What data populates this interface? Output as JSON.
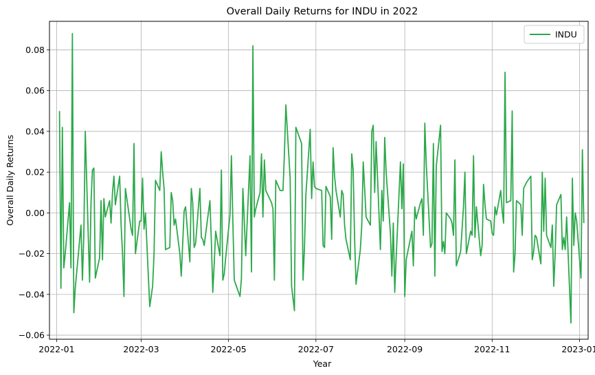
{
  "chart_data": {
    "type": "line",
    "title": "Overall Daily Returns for INDU in 2022",
    "xlabel": "Year",
    "ylabel": "Overall Daily Returns",
    "x_range": [
      "2021-12-27",
      "2023-01-07"
    ],
    "ylim": [
      -0.062,
      0.094
    ],
    "grid": true,
    "legend_position": "top-right",
    "x_ticks": [
      {
        "date": "2022-01-01",
        "label": "2022-01"
      },
      {
        "date": "2022-03-01",
        "label": "2022-03"
      },
      {
        "date": "2022-05-01",
        "label": "2022-05"
      },
      {
        "date": "2022-07-01",
        "label": "2022-07"
      },
      {
        "date": "2022-09-01",
        "label": "2022-09"
      },
      {
        "date": "2022-11-01",
        "label": "2022-11"
      },
      {
        "date": "2023-01-01",
        "label": "2023-01"
      }
    ],
    "y_ticks": [
      {
        "value": -0.06,
        "label": "−0.06"
      },
      {
        "value": -0.04,
        "label": "−0.04"
      },
      {
        "value": -0.02,
        "label": "−0.02"
      },
      {
        "value": 0.0,
        "label": "0.00"
      },
      {
        "value": 0.02,
        "label": "0.02"
      },
      {
        "value": 0.04,
        "label": "0.04"
      },
      {
        "value": 0.06,
        "label": "0.06"
      },
      {
        "value": 0.08,
        "label": "0.08"
      }
    ],
    "series": [
      {
        "name": "INDU",
        "color": "#2ca84a",
        "points": [
          [
            "2022-01-03",
            0.05
          ],
          [
            "2022-01-04",
            -0.037
          ],
          [
            "2022-01-05",
            0.042
          ],
          [
            "2022-01-06",
            -0.027
          ],
          [
            "2022-01-07",
            -0.02
          ],
          [
            "2022-01-10",
            0.005
          ],
          [
            "2022-01-11",
            -0.027
          ],
          [
            "2022-01-12",
            0.088
          ],
          [
            "2022-01-13",
            -0.049
          ],
          [
            "2022-01-14",
            -0.037
          ],
          [
            "2022-01-18",
            -0.006
          ],
          [
            "2022-01-19",
            -0.033
          ],
          [
            "2022-01-20",
            -0.01
          ],
          [
            "2022-01-21",
            0.04
          ],
          [
            "2022-01-24",
            -0.034
          ],
          [
            "2022-01-25",
            0.005
          ],
          [
            "2022-01-26",
            0.021
          ],
          [
            "2022-01-27",
            0.022
          ],
          [
            "2022-01-28",
            -0.032
          ],
          [
            "2022-01-31",
            -0.022
          ],
          [
            "2022-02-01",
            0.006
          ],
          [
            "2022-02-02",
            -0.023
          ],
          [
            "2022-02-03",
            0.007
          ],
          [
            "2022-02-04",
            -0.002
          ],
          [
            "2022-02-07",
            0.006
          ],
          [
            "2022-02-08",
            -0.005
          ],
          [
            "2022-02-09",
            0.01
          ],
          [
            "2022-02-10",
            0.018
          ],
          [
            "2022-02-11",
            0.004
          ],
          [
            "2022-02-14",
            0.018
          ],
          [
            "2022-02-15",
            -0.006
          ],
          [
            "2022-02-16",
            -0.02
          ],
          [
            "2022-02-17",
            -0.041
          ],
          [
            "2022-02-18",
            0.012
          ],
          [
            "2022-02-22",
            -0.008
          ],
          [
            "2022-02-23",
            -0.011
          ],
          [
            "2022-02-24",
            0.034
          ],
          [
            "2022-02-25",
            -0.02
          ],
          [
            "2022-02-28",
            -0.004
          ],
          [
            "2022-03-01",
            -0.004
          ],
          [
            "2022-03-02",
            0.017
          ],
          [
            "2022-03-03",
            -0.008
          ],
          [
            "2022-03-04",
            0.0
          ],
          [
            "2022-03-07",
            -0.046
          ],
          [
            "2022-03-08",
            -0.041
          ],
          [
            "2022-03-09",
            -0.036
          ],
          [
            "2022-03-10",
            -0.02
          ],
          [
            "2022-03-11",
            0.016
          ],
          [
            "2022-03-14",
            0.011
          ],
          [
            "2022-03-15",
            0.03
          ],
          [
            "2022-03-16",
            0.02
          ],
          [
            "2022-03-17",
            0.012
          ],
          [
            "2022-03-18",
            -0.018
          ],
          [
            "2022-03-21",
            -0.017
          ],
          [
            "2022-03-22",
            0.01
          ],
          [
            "2022-03-23",
            0.006
          ],
          [
            "2022-03-24",
            -0.006
          ],
          [
            "2022-03-25",
            -0.003
          ],
          [
            "2022-03-28",
            -0.02
          ],
          [
            "2022-03-29",
            -0.031
          ],
          [
            "2022-03-30",
            -0.015
          ],
          [
            "2022-03-31",
            0.001
          ],
          [
            "2022-04-01",
            0.003
          ],
          [
            "2022-04-04",
            -0.024
          ],
          [
            "2022-04-05",
            0.012
          ],
          [
            "2022-04-06",
            0.005
          ],
          [
            "2022-04-07",
            -0.017
          ],
          [
            "2022-04-08",
            -0.015
          ],
          [
            "2022-04-11",
            0.012
          ],
          [
            "2022-04-12",
            -0.012
          ],
          [
            "2022-04-13",
            -0.013
          ],
          [
            "2022-04-14",
            -0.016
          ],
          [
            "2022-04-18",
            0.006
          ],
          [
            "2022-04-19",
            -0.014
          ],
          [
            "2022-04-20",
            -0.039
          ],
          [
            "2022-04-21",
            -0.025
          ],
          [
            "2022-04-22",
            -0.009
          ],
          [
            "2022-04-25",
            -0.021
          ],
          [
            "2022-04-26",
            0.021
          ],
          [
            "2022-04-27",
            -0.033
          ],
          [
            "2022-04-28",
            -0.03
          ],
          [
            "2022-04-29",
            -0.022
          ],
          [
            "2022-05-02",
            -0.001
          ],
          [
            "2022-05-03",
            0.028
          ],
          [
            "2022-05-04",
            -0.004
          ],
          [
            "2022-05-05",
            -0.033
          ],
          [
            "2022-05-06",
            -0.035
          ],
          [
            "2022-05-09",
            -0.041
          ],
          [
            "2022-05-10",
            -0.032
          ],
          [
            "2022-05-11",
            0.012
          ],
          [
            "2022-05-12",
            -0.004
          ],
          [
            "2022-05-13",
            -0.021
          ],
          [
            "2022-05-16",
            0.028
          ],
          [
            "2022-05-17",
            -0.029
          ],
          [
            "2022-05-18",
            0.082
          ],
          [
            "2022-05-19",
            -0.002
          ],
          [
            "2022-05-20",
            0.002
          ],
          [
            "2022-05-23",
            0.01
          ],
          [
            "2022-05-24",
            0.029
          ],
          [
            "2022-05-25",
            -0.002
          ],
          [
            "2022-05-26",
            0.026
          ],
          [
            "2022-05-27",
            0.011
          ],
          [
            "2022-05-31",
            0.005
          ],
          [
            "2022-06-01",
            0.002
          ],
          [
            "2022-06-02",
            -0.033
          ],
          [
            "2022-06-03",
            0.016
          ],
          [
            "2022-06-06",
            0.011
          ],
          [
            "2022-06-07",
            0.011
          ],
          [
            "2022-06-08",
            0.011
          ],
          [
            "2022-06-09",
            0.029
          ],
          [
            "2022-06-10",
            0.053
          ],
          [
            "2022-06-13",
            0.017
          ],
          [
            "2022-06-14",
            -0.036
          ],
          [
            "2022-06-15",
            -0.042
          ],
          [
            "2022-06-16",
            -0.048
          ],
          [
            "2022-06-17",
            0.042
          ],
          [
            "2022-06-21",
            0.034
          ],
          [
            "2022-06-22",
            -0.033
          ],
          [
            "2022-06-23",
            -0.017
          ],
          [
            "2022-06-24",
            0.009
          ],
          [
            "2022-06-27",
            0.041
          ],
          [
            "2022-06-28",
            0.007
          ],
          [
            "2022-06-29",
            0.025
          ],
          [
            "2022-06-30",
            0.013
          ],
          [
            "2022-07-01",
            0.012
          ],
          [
            "2022-07-05",
            0.011
          ],
          [
            "2022-07-06",
            -0.016
          ],
          [
            "2022-07-07",
            -0.017
          ],
          [
            "2022-07-08",
            0.013
          ],
          [
            "2022-07-11",
            0.008
          ],
          [
            "2022-07-12",
            -0.013
          ],
          [
            "2022-07-13",
            0.032
          ],
          [
            "2022-07-14",
            0.018
          ],
          [
            "2022-07-15",
            0.011
          ],
          [
            "2022-07-18",
            -0.002
          ],
          [
            "2022-07-19",
            0.011
          ],
          [
            "2022-07-20",
            0.009
          ],
          [
            "2022-07-21",
            -0.006
          ],
          [
            "2022-07-22",
            -0.013
          ],
          [
            "2022-07-25",
            -0.023
          ],
          [
            "2022-07-26",
            0.029
          ],
          [
            "2022-07-27",
            0.021
          ],
          [
            "2022-07-28",
            -0.013
          ],
          [
            "2022-07-29",
            -0.035
          ],
          [
            "2022-08-01",
            -0.018
          ],
          [
            "2022-08-02",
            -0.006
          ],
          [
            "2022-08-03",
            0.025
          ],
          [
            "2022-08-04",
            0.012
          ],
          [
            "2022-08-05",
            -0.002
          ],
          [
            "2022-08-08",
            -0.006
          ],
          [
            "2022-08-09",
            0.04
          ],
          [
            "2022-08-10",
            0.043
          ],
          [
            "2022-08-11",
            0.01
          ],
          [
            "2022-08-12",
            0.035
          ],
          [
            "2022-08-15",
            -0.018
          ],
          [
            "2022-08-16",
            0.011
          ],
          [
            "2022-08-17",
            -0.004
          ],
          [
            "2022-08-18",
            0.037
          ],
          [
            "2022-08-19",
            0.02
          ],
          [
            "2022-08-22",
            -0.01
          ],
          [
            "2022-08-23",
            -0.031
          ],
          [
            "2022-08-24",
            -0.005
          ],
          [
            "2022-08-25",
            -0.039
          ],
          [
            "2022-08-26",
            -0.022
          ],
          [
            "2022-08-29",
            0.025
          ],
          [
            "2022-08-30",
            0.002
          ],
          [
            "2022-08-31",
            0.024
          ],
          [
            "2022-09-01",
            -0.041
          ],
          [
            "2022-09-02",
            -0.023
          ],
          [
            "2022-09-06",
            -0.009
          ],
          [
            "2022-09-07",
            -0.026
          ],
          [
            "2022-09-08",
            0.003
          ],
          [
            "2022-09-09",
            -0.003
          ],
          [
            "2022-09-12",
            0.005
          ],
          [
            "2022-09-13",
            0.007
          ],
          [
            "2022-09-14",
            -0.011
          ],
          [
            "2022-09-15",
            0.044
          ],
          [
            "2022-09-16",
            0.024
          ],
          [
            "2022-09-19",
            -0.017
          ],
          [
            "2022-09-20",
            -0.015
          ],
          [
            "2022-09-21",
            0.034
          ],
          [
            "2022-09-22",
            -0.031
          ],
          [
            "2022-09-23",
            0.023
          ],
          [
            "2022-09-26",
            0.043
          ],
          [
            "2022-09-27",
            -0.019
          ],
          [
            "2022-09-28",
            -0.014
          ],
          [
            "2022-09-29",
            -0.02
          ],
          [
            "2022-09-30",
            0.0
          ],
          [
            "2022-10-03",
            -0.003
          ],
          [
            "2022-10-04",
            -0.005
          ],
          [
            "2022-10-05",
            -0.011
          ],
          [
            "2022-10-06",
            0.026
          ],
          [
            "2022-10-07",
            -0.026
          ],
          [
            "2022-10-10",
            -0.019
          ],
          [
            "2022-10-11",
            -0.008
          ],
          [
            "2022-10-12",
            0.003
          ],
          [
            "2022-10-13",
            0.02
          ],
          [
            "2022-10-14",
            -0.02
          ],
          [
            "2022-10-17",
            -0.009
          ],
          [
            "2022-10-18",
            -0.011
          ],
          [
            "2022-10-19",
            0.028
          ],
          [
            "2022-10-20",
            -0.012
          ],
          [
            "2022-10-21",
            0.003
          ],
          [
            "2022-10-24",
            -0.021
          ],
          [
            "2022-10-25",
            -0.016
          ],
          [
            "2022-10-26",
            0.014
          ],
          [
            "2022-10-27",
            0.004
          ],
          [
            "2022-10-28",
            -0.003
          ],
          [
            "2022-10-31",
            -0.004
          ],
          [
            "2022-11-01",
            -0.01
          ],
          [
            "2022-11-02",
            -0.011
          ],
          [
            "2022-11-03",
            0.003
          ],
          [
            "2022-11-04",
            -0.001
          ],
          [
            "2022-11-07",
            0.011
          ],
          [
            "2022-11-08",
            0.001
          ],
          [
            "2022-11-09",
            -0.005
          ],
          [
            "2022-11-10",
            0.069
          ],
          [
            "2022-11-11",
            0.005
          ],
          [
            "2022-11-14",
            0.006
          ],
          [
            "2022-11-15",
            0.05
          ],
          [
            "2022-11-16",
            -0.029
          ],
          [
            "2022-11-17",
            -0.02
          ],
          [
            "2022-11-18",
            0.006
          ],
          [
            "2022-11-21",
            0.004
          ],
          [
            "2022-11-22",
            -0.011
          ],
          [
            "2022-11-23",
            0.012
          ],
          [
            "2022-11-25",
            0.015
          ],
          [
            "2022-11-28",
            0.018
          ],
          [
            "2022-11-29",
            -0.023
          ],
          [
            "2022-11-30",
            -0.019
          ],
          [
            "2022-12-01",
            -0.011
          ],
          [
            "2022-12-02",
            -0.012
          ],
          [
            "2022-12-05",
            -0.025
          ],
          [
            "2022-12-06",
            0.02
          ],
          [
            "2022-12-07",
            -0.009
          ],
          [
            "2022-12-08",
            0.017
          ],
          [
            "2022-12-09",
            -0.011
          ],
          [
            "2022-12-12",
            -0.017
          ],
          [
            "2022-12-13",
            -0.006
          ],
          [
            "2022-12-14",
            -0.036
          ],
          [
            "2022-12-15",
            -0.02
          ],
          [
            "2022-12-16",
            0.004
          ],
          [
            "2022-12-19",
            0.009
          ],
          [
            "2022-12-20",
            -0.018
          ],
          [
            "2022-12-21",
            -0.012
          ],
          [
            "2022-12-22",
            -0.018
          ],
          [
            "2022-12-23",
            -0.002
          ],
          [
            "2022-12-26",
            -0.054
          ],
          [
            "2022-12-27",
            0.017
          ],
          [
            "2022-12-28",
            -0.016
          ],
          [
            "2022-12-29",
            0.0
          ],
          [
            "2022-12-30",
            -0.004
          ],
          [
            "2023-01-02",
            -0.032
          ],
          [
            "2023-01-03",
            0.031
          ],
          [
            "2023-01-04",
            -0.005
          ]
        ]
      }
    ]
  }
}
